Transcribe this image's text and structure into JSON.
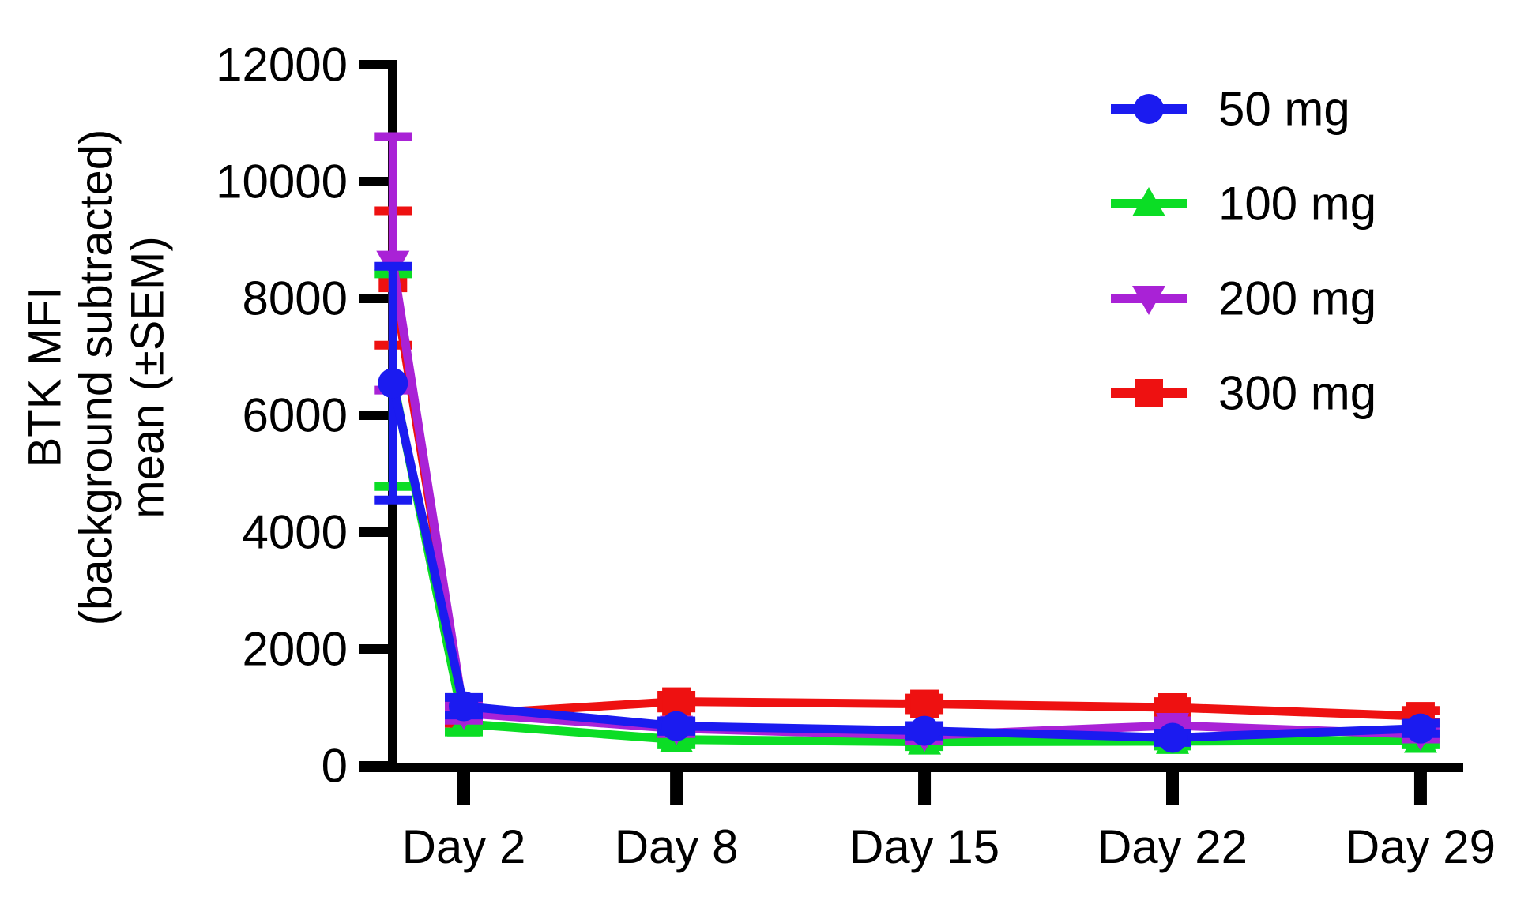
{
  "figure": {
    "background": "#ffffff",
    "text_color": "#000000",
    "axis_color": "#000000"
  },
  "chart_data": {
    "type": "line",
    "title": "",
    "xlabel": "",
    "ylabel_lines": [
      "BTK MFI",
      "(background subtracted)",
      "mean (±SEM)"
    ],
    "ylim": [
      0,
      12000
    ],
    "yticks": [
      0,
      2000,
      4000,
      6000,
      8000,
      10000,
      12000
    ],
    "x_days": [
      0,
      2,
      8,
      15,
      22,
      29
    ],
    "x_tick_days": [
      2,
      8,
      15,
      22,
      29
    ],
    "x_tick_labels": [
      "Day 2",
      "Day 8",
      "Day 15",
      "Day 22",
      "Day 29"
    ],
    "grid": false,
    "legend_position": "top-right",
    "error_bar_type": "±SEM",
    "series": [
      {
        "name": "50 mg",
        "color": "#1b1bf0",
        "marker": "circle",
        "values": [
          6550,
          1020,
          680,
          600,
          480,
          640
        ],
        "sem": [
          2000,
          150,
          90,
          90,
          80,
          90
        ]
      },
      {
        "name": "100 mg",
        "color": "#0bdd25",
        "marker": "triangle-up",
        "values": [
          6600,
          720,
          450,
          410,
          420,
          440
        ],
        "sem": [
          1820,
          140,
          90,
          80,
          80,
          80
        ]
      },
      {
        "name": "200 mg",
        "color": "#a922d6",
        "marker": "triangle-down",
        "values": [
          8600,
          900,
          640,
          520,
          690,
          540
        ],
        "sem": [
          2170,
          120,
          90,
          80,
          80,
          80
        ]
      },
      {
        "name": "300 mg",
        "color": "#ee1111",
        "marker": "square",
        "values": [
          8350,
          880,
          1100,
          1060,
          1000,
          850
        ],
        "sem": [
          1150,
          150,
          110,
          100,
          100,
          100
        ]
      }
    ],
    "draw_order": [
      "300 mg",
      "100 mg",
      "200 mg",
      "50 mg"
    ]
  }
}
